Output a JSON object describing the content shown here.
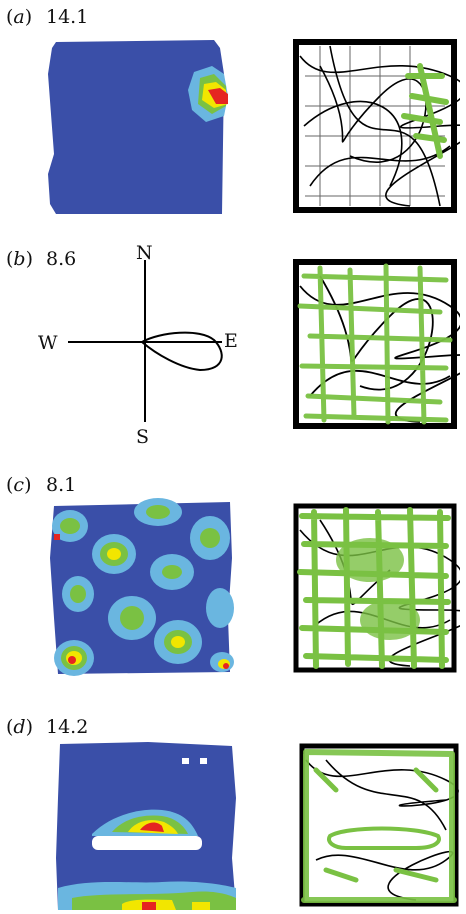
{
  "panels": [
    {
      "letter": "a",
      "peak_rate": "14.1"
    },
    {
      "letter": "b",
      "peak_rate": "8.6"
    },
    {
      "letter": "c",
      "peak_rate": "8.1"
    },
    {
      "letter": "d",
      "peak_rate": "14.2"
    }
  ],
  "compass": {
    "north": "N",
    "south": "S",
    "east": "E",
    "west": "W"
  },
  "colors": {
    "rate_low": "#3a4fa8",
    "rate_mid": "#6ab6e0",
    "rate_midhigh": "#7ac143",
    "rate_high": "#f2e600",
    "rate_peak": "#e52521",
    "path": "#000000",
    "spikes": "#7ac143"
  }
}
